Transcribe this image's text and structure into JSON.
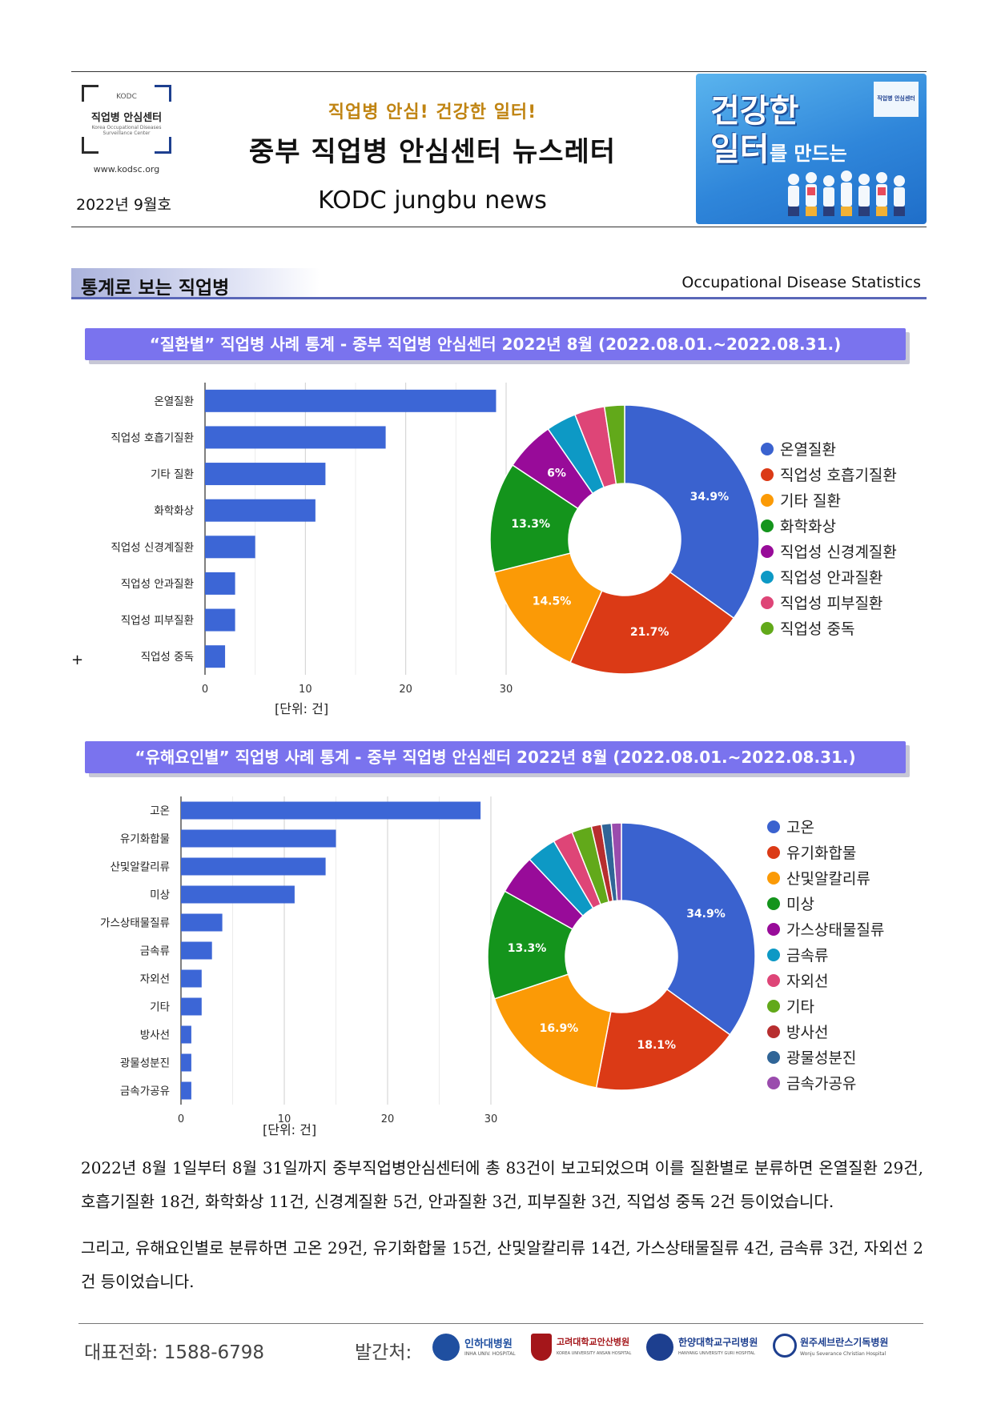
{
  "header": {
    "logo": {
      "kodc": "KODC",
      "name": "직업병 안심센터",
      "sub": "Korea Occupational Diseases Surveillance Center",
      "url": "www.kodsc.org"
    },
    "issue": "2022년 9월호",
    "slogan": "직업병 안심!  건강한 일터!",
    "title": "중부 직업병 안심센터 뉴스레터",
    "title_en": "KODC jungbu news",
    "banner": {
      "line1": "건강한",
      "line2": "일터",
      "line3": "를 만드는",
      "mini_logo": "직업병 안심센터"
    }
  },
  "section": {
    "title": "통계로 보는 직업병",
    "title_en": "Occupational Disease Statistics"
  },
  "charts": {
    "disease": {
      "banner": "“질환별” 직업병 사례 통계 - 중부 직업병 안심센터 2022년 8월 (2022.08.01.~2022.08.31.)",
      "unit": "[단위: 건]"
    },
    "hazard": {
      "banner": "“유해요인별” 직업병 사례 통계 - 중부 직업병 안심센터 2022년 8월 (2022.08.01.~2022.08.31.)",
      "unit": "[단위: 건]"
    }
  },
  "chart_data": [
    {
      "type": "bar",
      "orientation": "horizontal",
      "categories": [
        "온열질환",
        "직업성 호흡기질환",
        "기타 질환",
        "화학화상",
        "직업성 신경계질환",
        "직업성 안과질환",
        "직업성 피부질환",
        "직업성 중독"
      ],
      "values": [
        29,
        18,
        12,
        11,
        5,
        3,
        3,
        2
      ],
      "xlim": [
        0,
        30
      ],
      "xticks": [
        0,
        10,
        20,
        30
      ],
      "xlabel": "[단위: 건]",
      "grid": true,
      "color": "#3c66d6"
    },
    {
      "type": "pie",
      "donut": true,
      "labels": [
        "온열질환",
        "직업성 호흡기질환",
        "기타 질환",
        "화학화상",
        "직업성 신경계질환",
        "직업성 안과질환",
        "직업성 피부질환",
        "직업성 중독"
      ],
      "values": [
        29,
        18,
        12,
        11,
        5,
        3,
        3,
        2
      ],
      "slice_labels": [
        "34.9%",
        "21.7%",
        "14.5%",
        "13.3%",
        "6%",
        "",
        "",
        ""
      ],
      "colors": [
        "#3a62cf",
        "#db3a16",
        "#fb9a06",
        "#14941c",
        "#980b99",
        "#0d99c5",
        "#de4577",
        "#62a91a"
      ],
      "legend": "right"
    },
    {
      "type": "bar",
      "orientation": "horizontal",
      "categories": [
        "고온",
        "유기화합물",
        "산및알칼리류",
        "미상",
        "가스상태물질류",
        "금속류",
        "자외선",
        "기타",
        "방사선",
        "광물성분진",
        "금속가공유"
      ],
      "values": [
        29,
        15,
        14,
        11,
        4,
        3,
        2,
        2,
        1,
        1,
        1
      ],
      "xlim": [
        0,
        30
      ],
      "xticks": [
        0,
        10,
        20,
        30
      ],
      "xlabel": "[단위: 건]",
      "grid": true,
      "color": "#3c66d6"
    },
    {
      "type": "pie",
      "donut": true,
      "labels": [
        "고온",
        "유기화합물",
        "산및알칼리류",
        "미상",
        "가스상태물질류",
        "금속류",
        "자외선",
        "기타",
        "방사선",
        "광물성분진",
        "금속가공유"
      ],
      "values": [
        29,
        15,
        14,
        11,
        4,
        3,
        2,
        2,
        1,
        1,
        1
      ],
      "slice_labels": [
        "34.9%",
        "18.1%",
        "16.9%",
        "13.3%",
        "",
        "",
        "",
        "",
        "",
        "",
        ""
      ],
      "colors": [
        "#3a62cf",
        "#db3a16",
        "#fb9a06",
        "#14941c",
        "#980b99",
        "#0d99c5",
        "#de4577",
        "#62a91a",
        "#b72e2f",
        "#306597",
        "#9a4cad"
      ],
      "legend": "right"
    }
  ],
  "body": {
    "para1": "2022년 8월 1일부터 8월 31일까지 중부직업병안심센터에 총 83건이 보고되었으며 이를 질환별로 분류하면 온열질환 29건, 호흡기질환 18건, 화학화상 11건, 신경계질환 5건, 안과질환 3건, 피부질환 3건, 직업성 중독 2건 등이었습니다.",
    "para2": "그리고, 유해요인별로 분류하면 고온 29건, 유기화합물 15건, 산및알칼리류 14건, 가스상태물질류 4건, 금속류 3건, 자외선 2건 등이었습니다."
  },
  "misc": {
    "plus": "+"
  },
  "footer": {
    "phone": "대표전화: 1588-6798",
    "publisher_label": "발간처:",
    "hospitals": [
      {
        "name": "인하대병원",
        "sub": "INHA UNIV. HOSPITAL",
        "color": "#1f4fa0"
      },
      {
        "name": "고려대학교안산병원",
        "sub": "KOREA UNIVERSITY ANSAN HOSPITAL",
        "color": "#a4161a"
      },
      {
        "name": "한양대학교구리병원",
        "sub": "HANYANG UNIVERSITY GURI HOSPITAL",
        "color": "#1d3f8f"
      },
      {
        "name": "원주세브란스기독병원",
        "sub": "Wonju Severance Christian Hospital",
        "color": "#1d3f8f"
      }
    ]
  }
}
